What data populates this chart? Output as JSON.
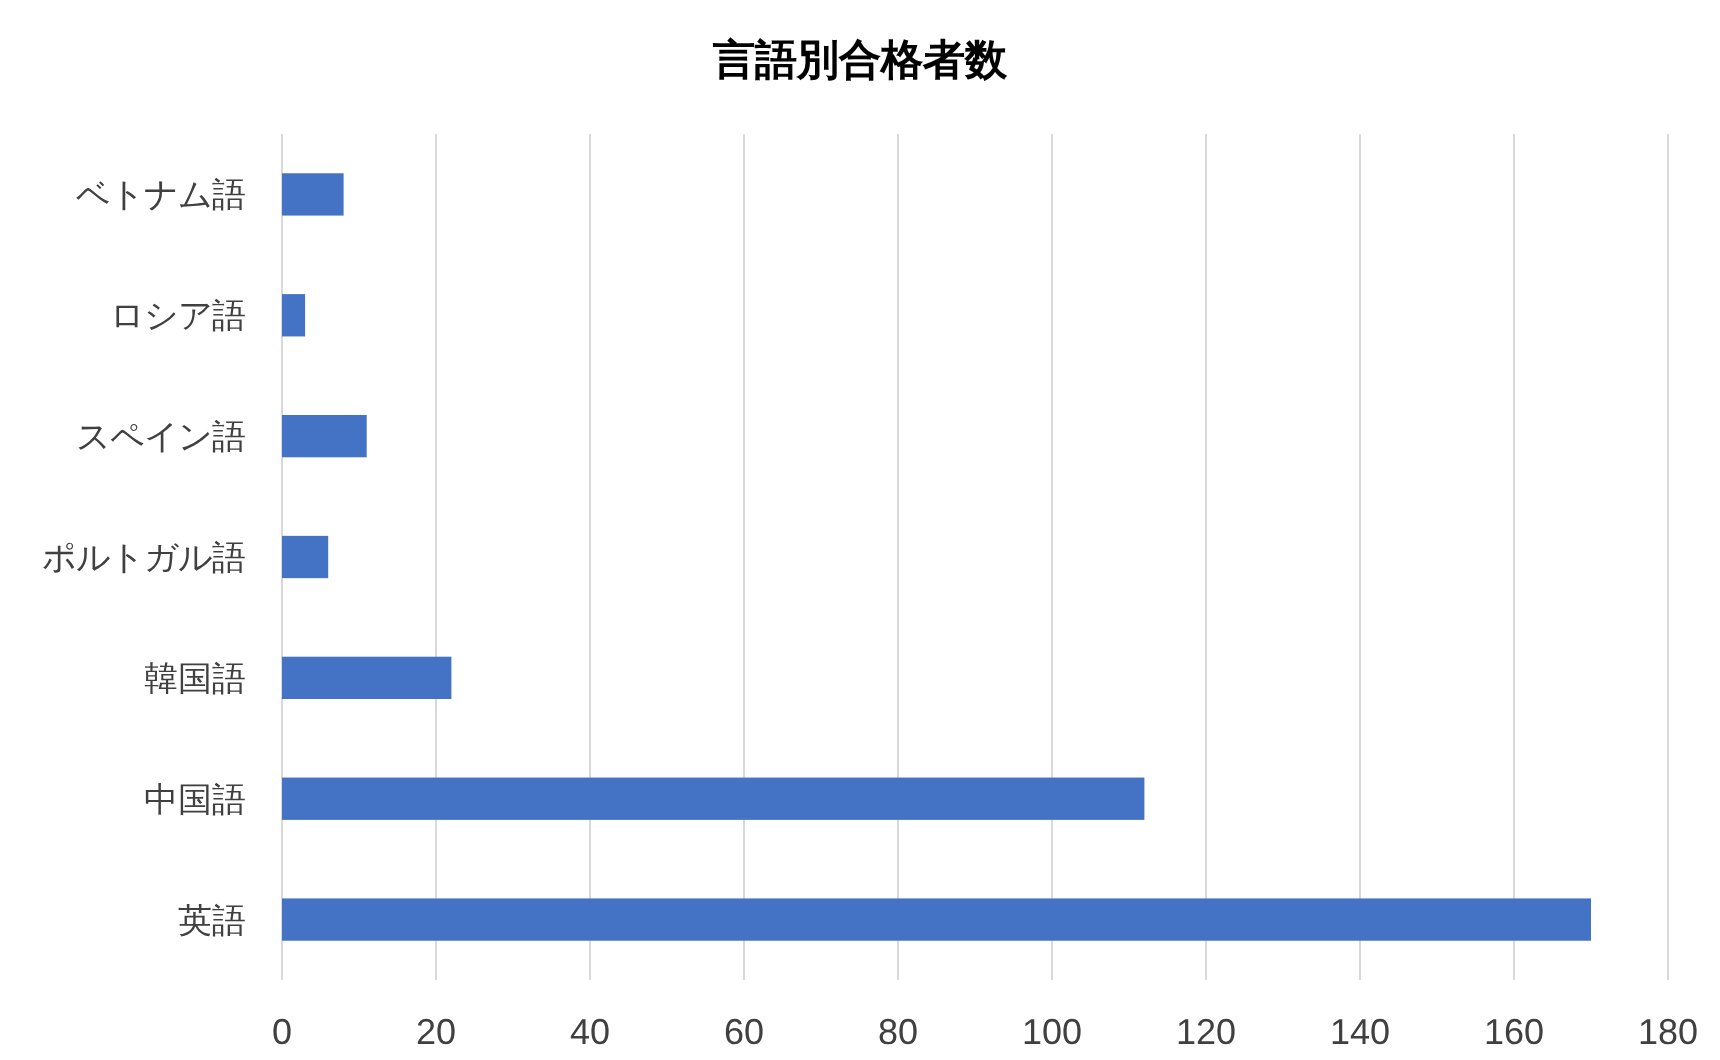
{
  "chart_data": {
    "type": "bar",
    "orientation": "horizontal",
    "title": "言語別合格者数",
    "categories": [
      "ベトナム語",
      "ロシア語",
      "スペイン語",
      "ポルトガル語",
      "韓国語",
      "中国語",
      "英語"
    ],
    "values": [
      8,
      3,
      11,
      6,
      22,
      112,
      170
    ],
    "color": "#4472c4",
    "xlim": [
      0,
      180
    ],
    "xticks": [
      0,
      20,
      40,
      60,
      80,
      100,
      120,
      140,
      160,
      180
    ],
    "grid": "x"
  }
}
